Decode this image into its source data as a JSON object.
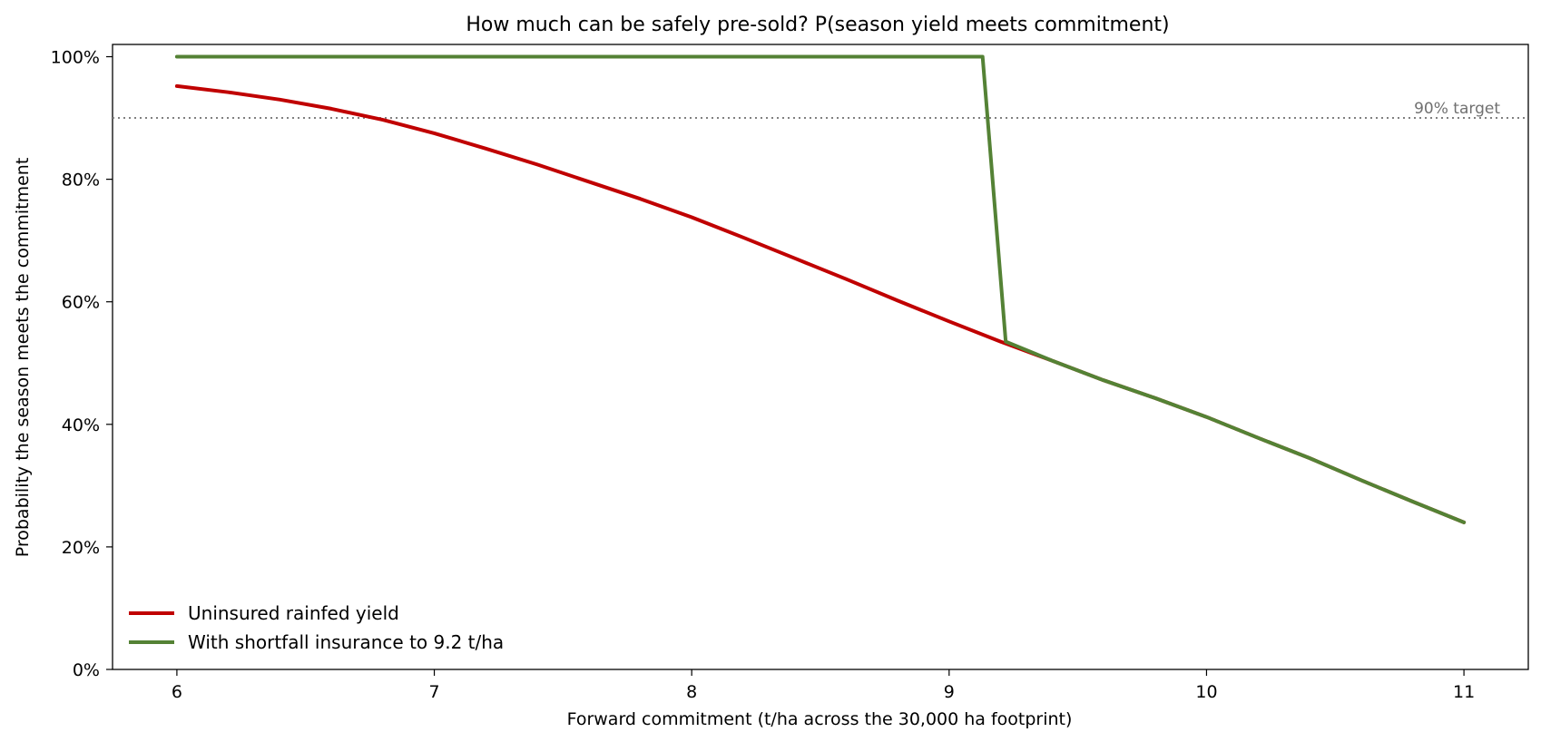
{
  "chart_data": {
    "type": "line",
    "title": "How much can be safely pre-sold? P(season yield meets commitment)",
    "xlabel": "Forward commitment  (t/ha across the 30,000 ha footprint)",
    "ylabel": "Probability the season meets the commitment",
    "xlim": [
      5.75,
      11.25
    ],
    "ylim": [
      0,
      1.02
    ],
    "x_ticks": [
      6,
      7,
      8,
      9,
      10,
      11
    ],
    "x_tick_labels": [
      "6",
      "7",
      "8",
      "9",
      "10",
      "11"
    ],
    "y_ticks": [
      0,
      0.2,
      0.4,
      0.6,
      0.8,
      1.0
    ],
    "y_tick_labels": [
      "0%",
      "20%",
      "40%",
      "60%",
      "80%",
      "100%"
    ],
    "grid": false,
    "legend_position": "lower-left",
    "reference_line": {
      "y": 0.9,
      "label": "90% target",
      "color": "#808080"
    },
    "series": [
      {
        "name": "Uninsured rainfed yield",
        "color": "#c00000",
        "x": [
          6.0,
          6.2,
          6.4,
          6.6,
          6.8,
          7.0,
          7.2,
          7.4,
          7.6,
          7.8,
          8.0,
          8.2,
          8.4,
          8.6,
          8.8,
          9.0,
          9.2,
          9.4,
          9.6,
          9.8,
          10.0,
          10.2,
          10.4,
          10.6,
          10.8,
          11.0
        ],
        "y": [
          0.952,
          0.942,
          0.93,
          0.915,
          0.897,
          0.875,
          0.85,
          0.824,
          0.796,
          0.768,
          0.738,
          0.705,
          0.671,
          0.637,
          0.602,
          0.568,
          0.535,
          0.504,
          0.472,
          0.443,
          0.412,
          0.378,
          0.345,
          0.309,
          0.274,
          0.24
        ]
      },
      {
        "name": "With shortfall insurance to 9.2 t/ha",
        "color": "#548235",
        "x": [
          6.0,
          7.0,
          8.0,
          9.0,
          9.13,
          9.22,
          9.4,
          9.6,
          9.8,
          10.0,
          10.2,
          10.4,
          10.6,
          10.8,
          11.0
        ],
        "y": [
          1.0,
          1.0,
          1.0,
          1.0,
          1.0,
          0.535,
          0.504,
          0.472,
          0.443,
          0.412,
          0.378,
          0.345,
          0.309,
          0.274,
          0.24
        ]
      }
    ]
  }
}
